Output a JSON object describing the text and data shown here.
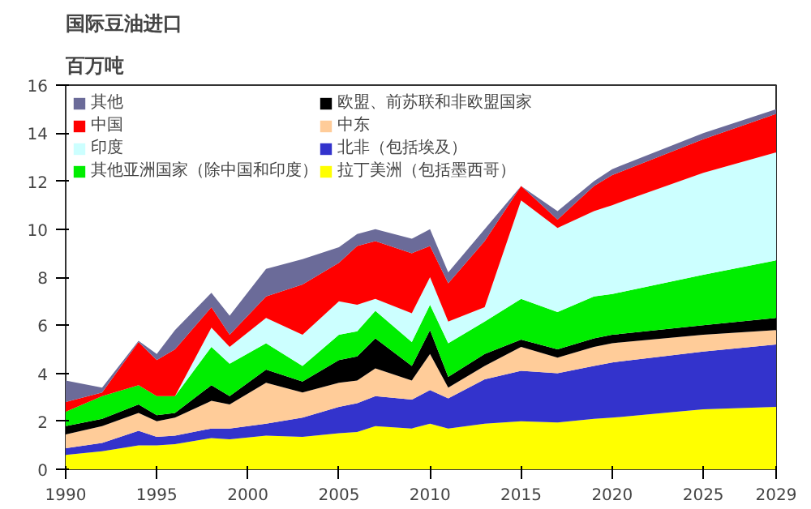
{
  "chart_data": {
    "type": "area",
    "title": "国际豆油进口",
    "subtitle": "百万吨",
    "stacked": true,
    "x": [
      1990,
      1992,
      1994,
      1995,
      1996,
      1998,
      1999,
      2001,
      2003,
      2005,
      2006,
      2007,
      2009,
      2010,
      2011,
      2013,
      2015,
      2017,
      2019,
      2020,
      2025,
      2029
    ],
    "series": [
      {
        "name": "拉丁美洲（包括墨西哥）",
        "color": "#ffff00",
        "values": [
          0.6,
          0.75,
          1.0,
          1.0,
          1.05,
          1.3,
          1.25,
          1.4,
          1.35,
          1.5,
          1.55,
          1.8,
          1.7,
          1.9,
          1.7,
          1.9,
          2.0,
          1.95,
          2.1,
          2.15,
          2.5,
          2.6
        ]
      },
      {
        "name": "北非（包括埃及）",
        "color": "#3333cc",
        "values": [
          0.28,
          0.35,
          0.6,
          0.35,
          0.35,
          0.4,
          0.45,
          0.5,
          0.8,
          1.1,
          1.2,
          1.25,
          1.2,
          1.4,
          1.25,
          1.85,
          2.1,
          2.05,
          2.2,
          2.3,
          2.4,
          2.6
        ]
      },
      {
        "name": "中东",
        "color": "#ffcc99",
        "values": [
          0.57,
          0.7,
          0.75,
          0.65,
          0.75,
          1.15,
          1.0,
          1.7,
          1.05,
          1.0,
          0.95,
          1.15,
          0.8,
          1.5,
          0.45,
          0.55,
          1.0,
          0.65,
          0.8,
          0.8,
          0.7,
          0.6
        ]
      },
      {
        "name": "欧盟、前苏联和非欧盟国家",
        "color": "#000000",
        "values": [
          0.35,
          0.3,
          0.35,
          0.25,
          0.2,
          0.65,
          0.35,
          0.55,
          0.45,
          0.95,
          1.0,
          1.25,
          0.6,
          1.0,
          0.45,
          0.5,
          0.3,
          0.35,
          0.35,
          0.35,
          0.4,
          0.5
        ]
      },
      {
        "name": "其他亚洲国家（除中国和印度）",
        "color": "#00ee00",
        "values": [
          0.6,
          0.95,
          0.8,
          0.8,
          0.7,
          1.6,
          1.35,
          1.1,
          0.65,
          1.05,
          1.05,
          1.15,
          1.0,
          1.05,
          1.4,
          1.35,
          1.7,
          1.55,
          1.75,
          1.7,
          2.1,
          2.4
        ]
      },
      {
        "name": "印度",
        "color": "#ccffff",
        "values": [
          0,
          0,
          0,
          0,
          0,
          0.8,
          0.7,
          1.05,
          1.3,
          1.4,
          1.1,
          0.5,
          1.2,
          1.15,
          0.9,
          0.6,
          4.1,
          3.5,
          3.55,
          3.7,
          4.25,
          4.5
        ]
      },
      {
        "name": "中国",
        "color": "#ff0000",
        "values": [
          0.4,
          0.15,
          1.8,
          1.5,
          1.95,
          0.85,
          0.5,
          0.9,
          2.1,
          1.6,
          2.45,
          2.4,
          2.5,
          1.3,
          1.6,
          2.75,
          0.6,
          0.35,
          1.05,
          1.25,
          1.4,
          1.6
        ]
      },
      {
        "name": "其他",
        "color": "#6b6b99",
        "values": [
          0.9,
          0.2,
          0.05,
          0.25,
          0.8,
          0.6,
          0.8,
          1.15,
          1.05,
          0.65,
          0.5,
          0.5,
          0.6,
          0.7,
          0.45,
          0.5,
          0.0,
          0.35,
          0.2,
          0.25,
          0.25,
          0.2
        ]
      }
    ],
    "xlim": [
      1990,
      2029
    ],
    "xticks": [
      1990,
      1995,
      2000,
      2005,
      2010,
      2015,
      2020,
      2025,
      2029
    ],
    "ylim": [
      0,
      16
    ],
    "yticks": [
      0,
      2,
      4,
      6,
      8,
      10,
      12,
      14,
      16
    ],
    "grid": false,
    "legend": "top left"
  }
}
